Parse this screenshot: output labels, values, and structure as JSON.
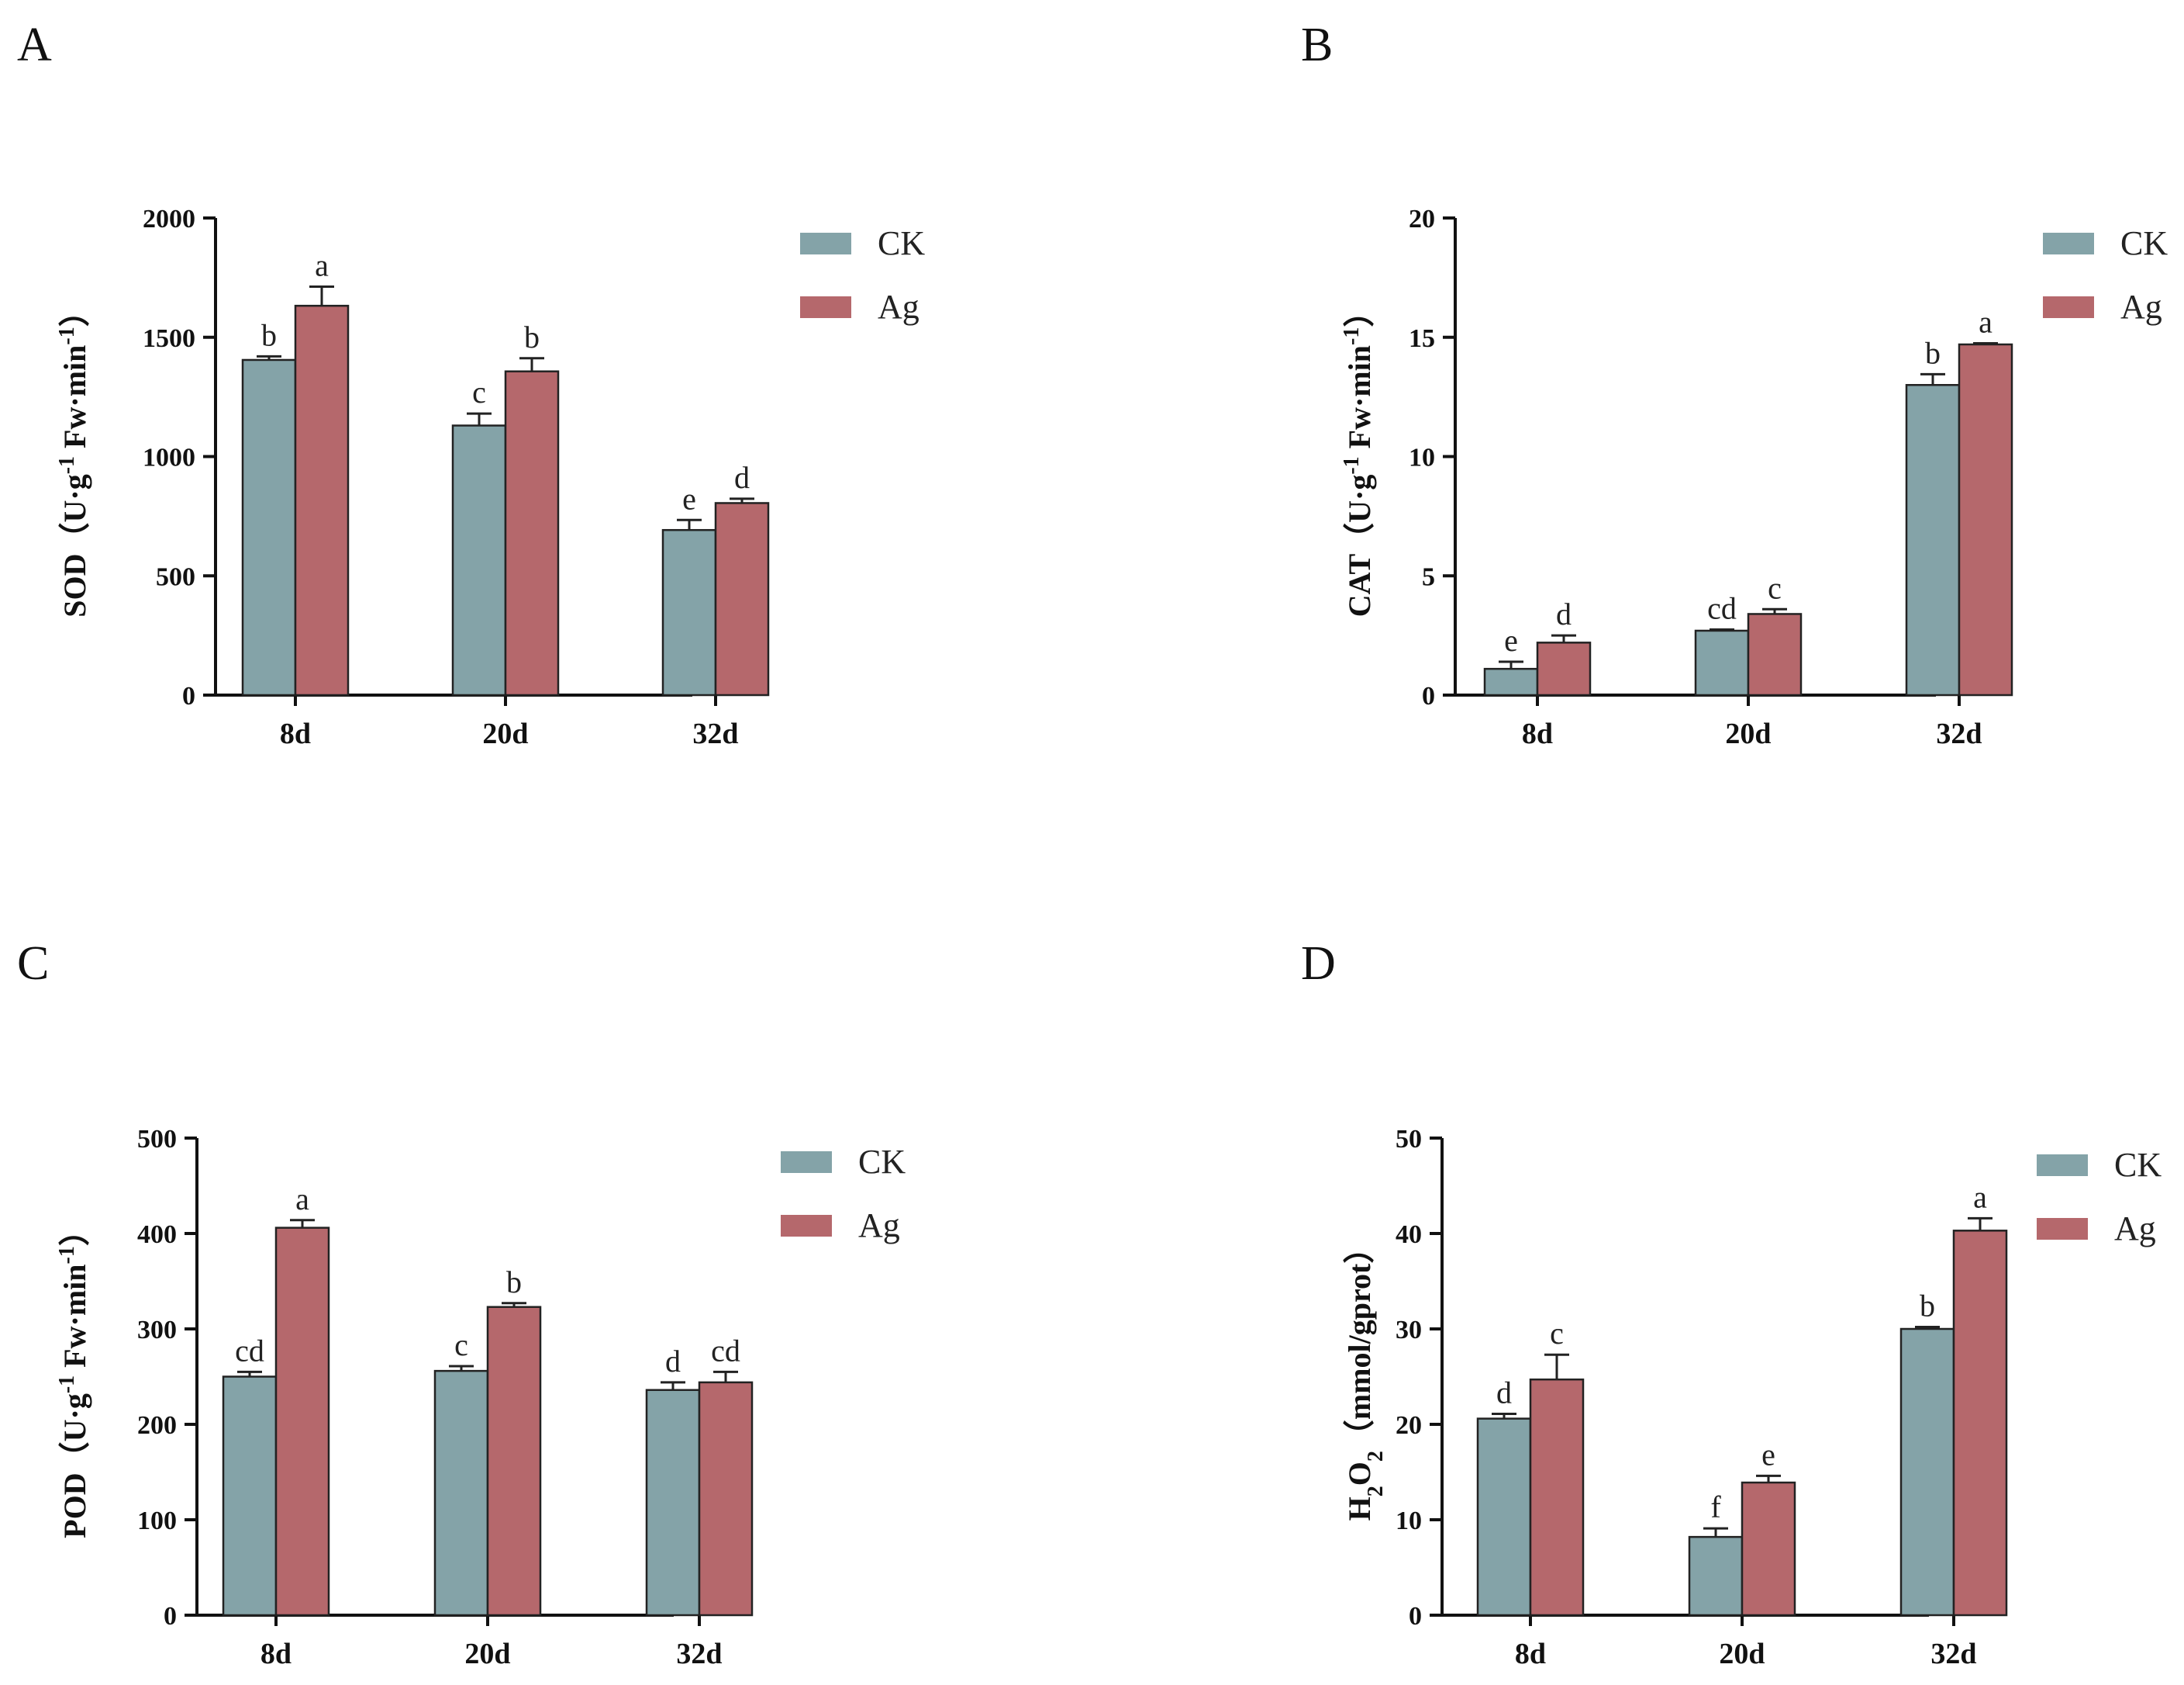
{
  "chart_data": [
    {
      "panel": "A",
      "type": "bar",
      "categories": [
        "8d",
        "20d",
        "32d"
      ],
      "ylabel_parts": [
        {
          "t": "SOD（U·g"
        },
        {
          "t": "-1",
          "sup": true
        },
        {
          "t": " Fw·min"
        },
        {
          "t": "-1",
          "sup": true
        },
        {
          "t": "）"
        }
      ],
      "ylim": [
        0,
        2000
      ],
      "yticks": [
        0,
        500,
        1000,
        1500,
        2000
      ],
      "series": [
        {
          "name": "CK",
          "color": "#84a3a8",
          "values": [
            1405,
            1130,
            692
          ],
          "errors": [
            15,
            50,
            42
          ],
          "letters": [
            "b",
            "c",
            "e"
          ]
        },
        {
          "name": "Ag",
          "color": "#b5686c",
          "values": [
            1632,
            1357,
            805
          ],
          "errors": [
            80,
            55,
            18
          ],
          "letters": [
            "a",
            "b",
            "d"
          ]
        }
      ]
    },
    {
      "panel": "B",
      "type": "bar",
      "categories": [
        "8d",
        "20d",
        "32d"
      ],
      "ylabel_parts": [
        {
          "t": "CAT（U·g"
        },
        {
          "t": "-1",
          "sup": true
        },
        {
          "t": " Fw·min"
        },
        {
          "t": "-1",
          "sup": true
        },
        {
          "t": "）"
        }
      ],
      "ylim": [
        0,
        20
      ],
      "yticks": [
        0,
        5,
        10,
        15,
        20
      ],
      "series": [
        {
          "name": "CK",
          "color": "#84a3a8",
          "values": [
            1.1,
            2.7,
            13.0
          ],
          "errors": [
            0.3,
            0.05,
            0.45
          ],
          "letters": [
            "e",
            "cd",
            "b"
          ]
        },
        {
          "name": "Ag",
          "color": "#b5686c",
          "values": [
            2.2,
            3.4,
            14.7
          ],
          "errors": [
            0.3,
            0.2,
            0.05
          ],
          "letters": [
            "d",
            "c",
            "a"
          ]
        }
      ]
    },
    {
      "panel": "C",
      "type": "bar",
      "categories": [
        "8d",
        "20d",
        "32d"
      ],
      "ylabel_parts": [
        {
          "t": "POD（U·g"
        },
        {
          "t": "-1",
          "sup": true
        },
        {
          "t": " Fw·min"
        },
        {
          "t": "-1",
          "sup": true
        },
        {
          "t": "）"
        }
      ],
      "ylim": [
        0,
        500
      ],
      "yticks": [
        0,
        100,
        200,
        300,
        400,
        500
      ],
      "series": [
        {
          "name": "CK",
          "color": "#84a3a8",
          "values": [
            250,
            256,
            236
          ],
          "errors": [
            5,
            5,
            8
          ],
          "letters": [
            "cd",
            "c",
            "d"
          ]
        },
        {
          "name": "Ag",
          "color": "#b5686c",
          "values": [
            406,
            323,
            244
          ],
          "errors": [
            8,
            4,
            11
          ],
          "letters": [
            "a",
            "b",
            "cd"
          ]
        }
      ]
    },
    {
      "panel": "D",
      "type": "bar",
      "categories": [
        "8d",
        "20d",
        "32d"
      ],
      "ylabel_parts": [
        {
          "t": "H"
        },
        {
          "t": "2",
          "sub": true
        },
        {
          "t": "O"
        },
        {
          "t": "2",
          "sub": true
        },
        {
          "t": "（mmol/gprot）"
        }
      ],
      "ylim": [
        0,
        50
      ],
      "yticks": [
        0,
        10,
        20,
        30,
        40,
        50
      ],
      "series": [
        {
          "name": "CK",
          "color": "#84a3a8",
          "values": [
            20.6,
            8.2,
            30.0
          ],
          "errors": [
            0.5,
            0.9,
            0.2
          ],
          "letters": [
            "d",
            "f",
            "b"
          ]
        },
        {
          "name": "Ag",
          "color": "#b5686c",
          "values": [
            24.7,
            13.9,
            40.3
          ],
          "errors": [
            2.6,
            0.7,
            1.3
          ],
          "letters": [
            "c",
            "e",
            "a"
          ]
        }
      ]
    }
  ]
}
